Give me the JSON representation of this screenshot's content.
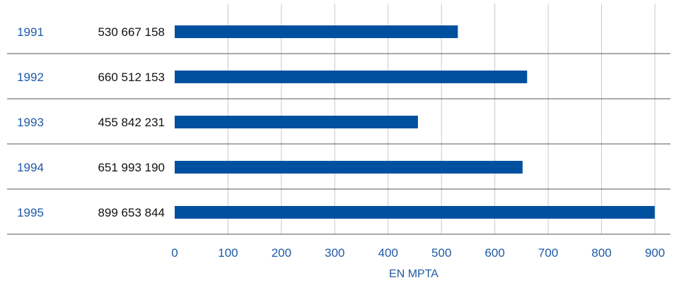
{
  "chart_data": {
    "type": "bar",
    "orientation": "horizontal",
    "categories": [
      "1991",
      "1992",
      "1993",
      "1994",
      "1995"
    ],
    "values": [
      530.667158,
      660.512153,
      455.842231,
      651.99319,
      899.653844
    ],
    "value_labels": [
      "530 667 158",
      "660 512 153",
      "455 842 231",
      "651 993 190",
      "899 653 844"
    ],
    "xlabel": "EN MPTA",
    "xlim": [
      0,
      900
    ],
    "xticks": [
      "0",
      "100",
      "200",
      "300",
      "400",
      "500",
      "600",
      "700",
      "800",
      "900"
    ],
    "grid": "vertical",
    "colors": {
      "bar": "#0050a0",
      "category_text": "#1f5aa6",
      "value_text": "#111111",
      "grid": "#c8c8c8",
      "separator": "#555555"
    }
  }
}
